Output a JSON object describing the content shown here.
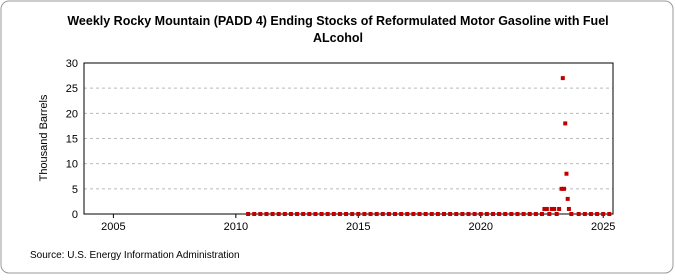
{
  "chart_data": {
    "type": "scatter",
    "title": [
      "Weekly Rocky Mountain (PADD 4) Ending Stocks of Reformulated Motor Gasoline with Fuel",
      "ALcohol"
    ],
    "y_label": "Thousand Barrels",
    "source": "Source: U.S. Energy Information Administration",
    "series": [
      {
        "name": "Ending Stocks",
        "color": "#c00000",
        "x": [
          2010.5,
          2010.75,
          2011,
          2011.25,
          2011.5,
          2011.75,
          2012,
          2012.25,
          2012.5,
          2012.75,
          2013,
          2013.25,
          2013.5,
          2013.75,
          2014,
          2014.25,
          2014.5,
          2014.75,
          2015,
          2015.25,
          2015.5,
          2015.75,
          2016,
          2016.25,
          2016.5,
          2016.75,
          2017,
          2017.25,
          2017.5,
          2017.75,
          2018,
          2018.25,
          2018.5,
          2018.75,
          2019,
          2019.25,
          2019.5,
          2019.75,
          2020,
          2020.25,
          2020.5,
          2020.75,
          2021,
          2021.25,
          2021.5,
          2021.75,
          2022,
          2022.25,
          2022.5,
          2022.6,
          2022.7,
          2022.8,
          2022.9,
          2023,
          2023.1,
          2023.2,
          2023.3,
          2023.35,
          2023.4,
          2023.45,
          2023.5,
          2023.55,
          2023.6,
          2023.7,
          2024,
          2024.25,
          2024.5,
          2024.75,
          2025,
          2025.25
        ],
        "values": [
          0,
          0,
          0,
          0,
          0,
          0,
          0,
          0,
          0,
          0,
          0,
          0,
          0,
          0,
          0,
          0,
          0,
          0,
          0,
          0,
          0,
          0,
          0,
          0,
          0,
          0,
          0,
          0,
          0,
          0,
          0,
          0,
          0,
          0,
          0,
          0,
          0,
          0,
          0,
          0,
          0,
          0,
          0,
          0,
          0,
          0,
          0,
          0,
          0,
          1,
          1,
          0,
          1,
          1,
          0,
          1,
          5,
          27,
          5,
          18,
          8,
          3,
          1,
          0,
          0,
          0,
          0,
          0,
          0,
          0
        ]
      }
    ],
    "xlim": [
      2003.8,
      2025.4
    ],
    "xticks": [
      2005,
      2010,
      2015,
      2020,
      2025
    ],
    "ylim": [
      0,
      30
    ],
    "yticks": [
      0,
      5,
      10,
      15,
      20,
      25,
      30
    ],
    "grid": true
  }
}
